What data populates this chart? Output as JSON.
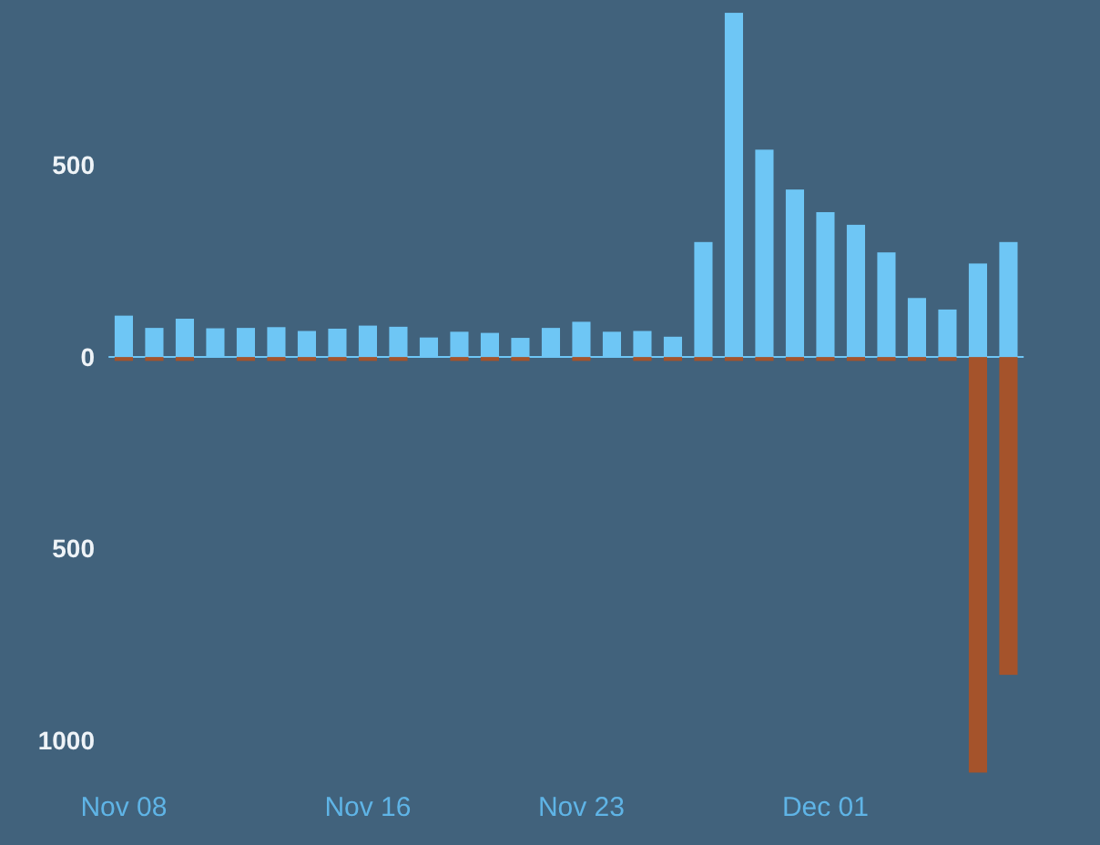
{
  "chart_data": {
    "type": "bar",
    "stacked": true,
    "ref_lines": [
      {
        "axis": "y",
        "value": 0,
        "color": "#6ec6f5"
      }
    ],
    "categories": [
      "Nov 08",
      null,
      null,
      null,
      null,
      null,
      null,
      null,
      "Nov 16",
      null,
      null,
      null,
      null,
      null,
      null,
      "Nov 23",
      null,
      null,
      null,
      null,
      null,
      null,
      null,
      "Dec 01",
      null,
      null,
      null,
      null,
      null,
      null
    ],
    "series": [
      {
        "color": "#6ec6f5",
        "values": [
          108,
          76,
          100,
          75,
          76,
          78,
          68,
          74,
          82,
          79,
          51,
          66,
          63,
          50,
          76,
          92,
          66,
          68,
          53,
          300,
          898,
          541,
          437,
          378,
          345,
          273,
          154,
          124,
          244,
          300
        ]
      },
      {
        "color": "#a5532b",
        "values": [
          -10,
          -10,
          -10,
          null,
          -10,
          -10,
          -10,
          -10,
          -10,
          -10,
          null,
          -10,
          -10,
          -10,
          null,
          -10,
          null,
          -10,
          -10,
          -10,
          -10,
          -10,
          -10,
          -10,
          -10,
          -10,
          -10,
          -10,
          -1084,
          -829
        ]
      }
    ],
    "ylim": [
      -1110,
      930
    ],
    "yticks": [
      {
        "value": 500,
        "label": "500"
      },
      0,
      {
        "value": -500,
        "label": "500"
      },
      {
        "value": -1000,
        "label": "1000"
      }
    ],
    "grid": false
  }
}
